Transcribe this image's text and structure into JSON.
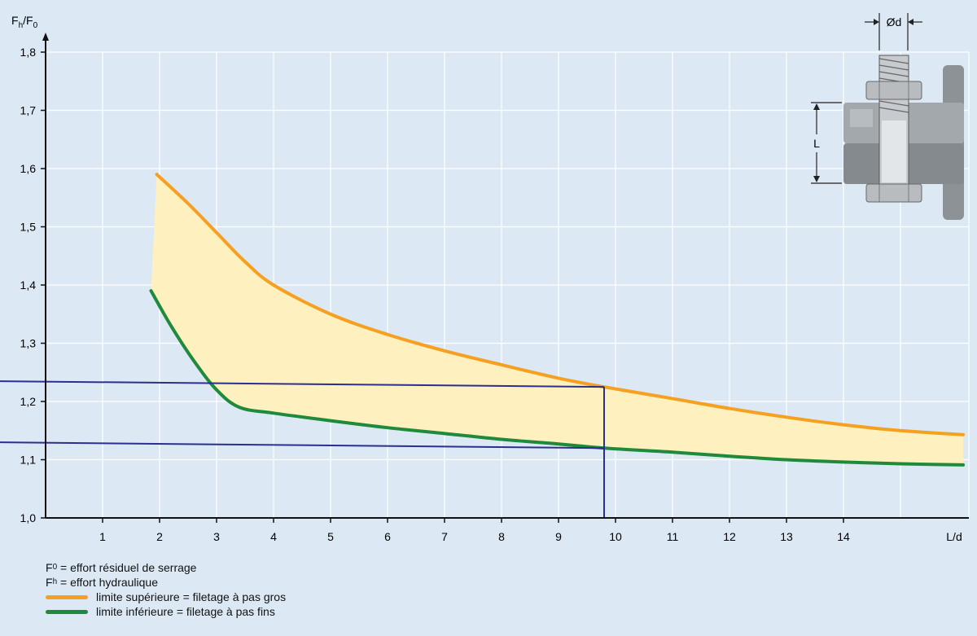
{
  "chart_data": {
    "type": "line",
    "ylabel": {
      "main": "F",
      "sub1": "h",
      "sep": "/F",
      "sub2": "0"
    },
    "xlabel": "L/d",
    "xlim": [
      0,
      16.2
    ],
    "ylim": [
      1.0,
      1.8
    ],
    "x_ticks": [
      1,
      2,
      3,
      4,
      5,
      6,
      7,
      8,
      9,
      10,
      11,
      12,
      13,
      14
    ],
    "x_tick_labels": [
      "1",
      "2",
      "3",
      "4",
      "5",
      "6",
      "7",
      "8",
      "9",
      "10",
      "11",
      "12",
      "13",
      "14"
    ],
    "y_ticks": [
      1.0,
      1.1,
      1.2,
      1.3,
      1.4,
      1.5,
      1.6,
      1.7,
      1.8
    ],
    "y_tick_labels": [
      "1,0",
      "1,1",
      "1,2",
      "1,3",
      "1,4",
      "1,5",
      "1,6",
      "1,7",
      "1,8"
    ],
    "grid": true,
    "series": [
      {
        "name": "limite supérieure = filetage à pas gros",
        "color": "#f5a020",
        "x": [
          1.95,
          2.5,
          3.0,
          3.5,
          4.0,
          5.0,
          6.0,
          7.0,
          8.0,
          9.0,
          9.8,
          11.0,
          12.0,
          13.0,
          14.0,
          15.0,
          16.1
        ],
        "y": [
          1.59,
          1.54,
          1.49,
          1.44,
          1.4,
          1.35,
          1.315,
          1.287,
          1.263,
          1.24,
          1.225,
          1.205,
          1.188,
          1.173,
          1.16,
          1.15,
          1.143
        ]
      },
      {
        "name": "limite inférieure = filetage à pas fins",
        "color": "#1e8a3a",
        "x": [
          1.85,
          2.2,
          2.6,
          3.0,
          3.4,
          4.0,
          5.0,
          6.0,
          7.0,
          8.0,
          9.0,
          9.8,
          11.0,
          12.0,
          13.0,
          14.0,
          15.0,
          16.1
        ],
        "y": [
          1.39,
          1.33,
          1.27,
          1.22,
          1.19,
          1.18,
          1.167,
          1.155,
          1.145,
          1.135,
          1.127,
          1.12,
          1.113,
          1.106,
          1.1,
          1.096,
          1.093,
          1.091
        ]
      }
    ],
    "fill_between": {
      "color": "#fff0c0"
    },
    "reference_lines": {
      "color": "#2b2f8f",
      "points": [
        {
          "from": [
            -1,
            1.235
          ],
          "to": [
            9.8,
            1.225
          ]
        },
        {
          "from": [
            -1,
            1.13
          ],
          "to": [
            9.8,
            1.12
          ]
        },
        {
          "from": [
            9.8,
            1.0
          ],
          "to": [
            9.8,
            1.225
          ]
        }
      ]
    },
    "legend": {
      "definitions": [
        {
          "sym": "F",
          "sub": "0",
          "text": " = effort résiduel de serrage"
        },
        {
          "sym": "F",
          "sub": "h",
          "text": " = effort hydraulique"
        }
      ],
      "entries": [
        {
          "label": "limite supérieure = filetage à pas gros",
          "color": "#f5a020"
        },
        {
          "label": "limite inférieure = filetage à pas fins",
          "color": "#1e8a3a"
        }
      ]
    },
    "inset": {
      "label_diameter": "Ød",
      "label_length": "L"
    }
  }
}
